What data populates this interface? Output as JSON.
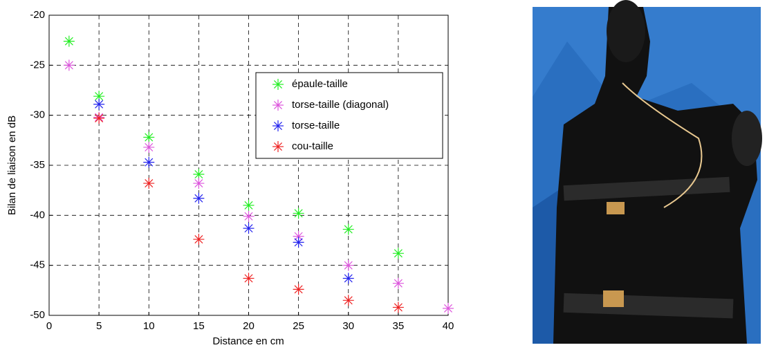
{
  "chart_data": {
    "type": "scatter",
    "xlabel": "Distance en cm",
    "ylabel": "Bilan de liaison en dB",
    "xlim": [
      0,
      40
    ],
    "ylim": [
      -50,
      -20
    ],
    "xticks": [
      0,
      5,
      10,
      15,
      20,
      25,
      30,
      35,
      40
    ],
    "yticks": [
      -50,
      -45,
      -40,
      -35,
      -30,
      -25,
      -20
    ],
    "grid": true,
    "legend": "upper right",
    "series": [
      {
        "name": "épaule-taille",
        "color": "#22ee22",
        "x": [
          2,
          5,
          10,
          15,
          20,
          25,
          30,
          35
        ],
        "values": [
          -22.6,
          -28.1,
          -32.2,
          -35.9,
          -39.0,
          -39.8,
          -41.4,
          -43.8
        ]
      },
      {
        "name": "torse-taille (diagonal)",
        "color": "#dd55dd",
        "x": [
          2,
          5,
          10,
          15,
          20,
          25,
          30,
          35,
          40
        ],
        "values": [
          -25.0,
          -30.2,
          -33.2,
          -36.8,
          -40.1,
          -42.1,
          -45.0,
          -46.8,
          -49.3
        ]
      },
      {
        "name": "torse-taille",
        "color": "#2222ee",
        "x": [
          5,
          10,
          15,
          20,
          25,
          30
        ],
        "values": [
          -28.9,
          -34.7,
          -38.3,
          -41.3,
          -42.7,
          -46.3
        ]
      },
      {
        "name": "cou-taille",
        "color": "#ee2222",
        "x": [
          5,
          10,
          15,
          20,
          25,
          30,
          35
        ],
        "values": [
          -30.3,
          -36.8,
          -42.4,
          -46.3,
          -47.4,
          -48.5,
          -49.2
        ]
      }
    ]
  }
}
